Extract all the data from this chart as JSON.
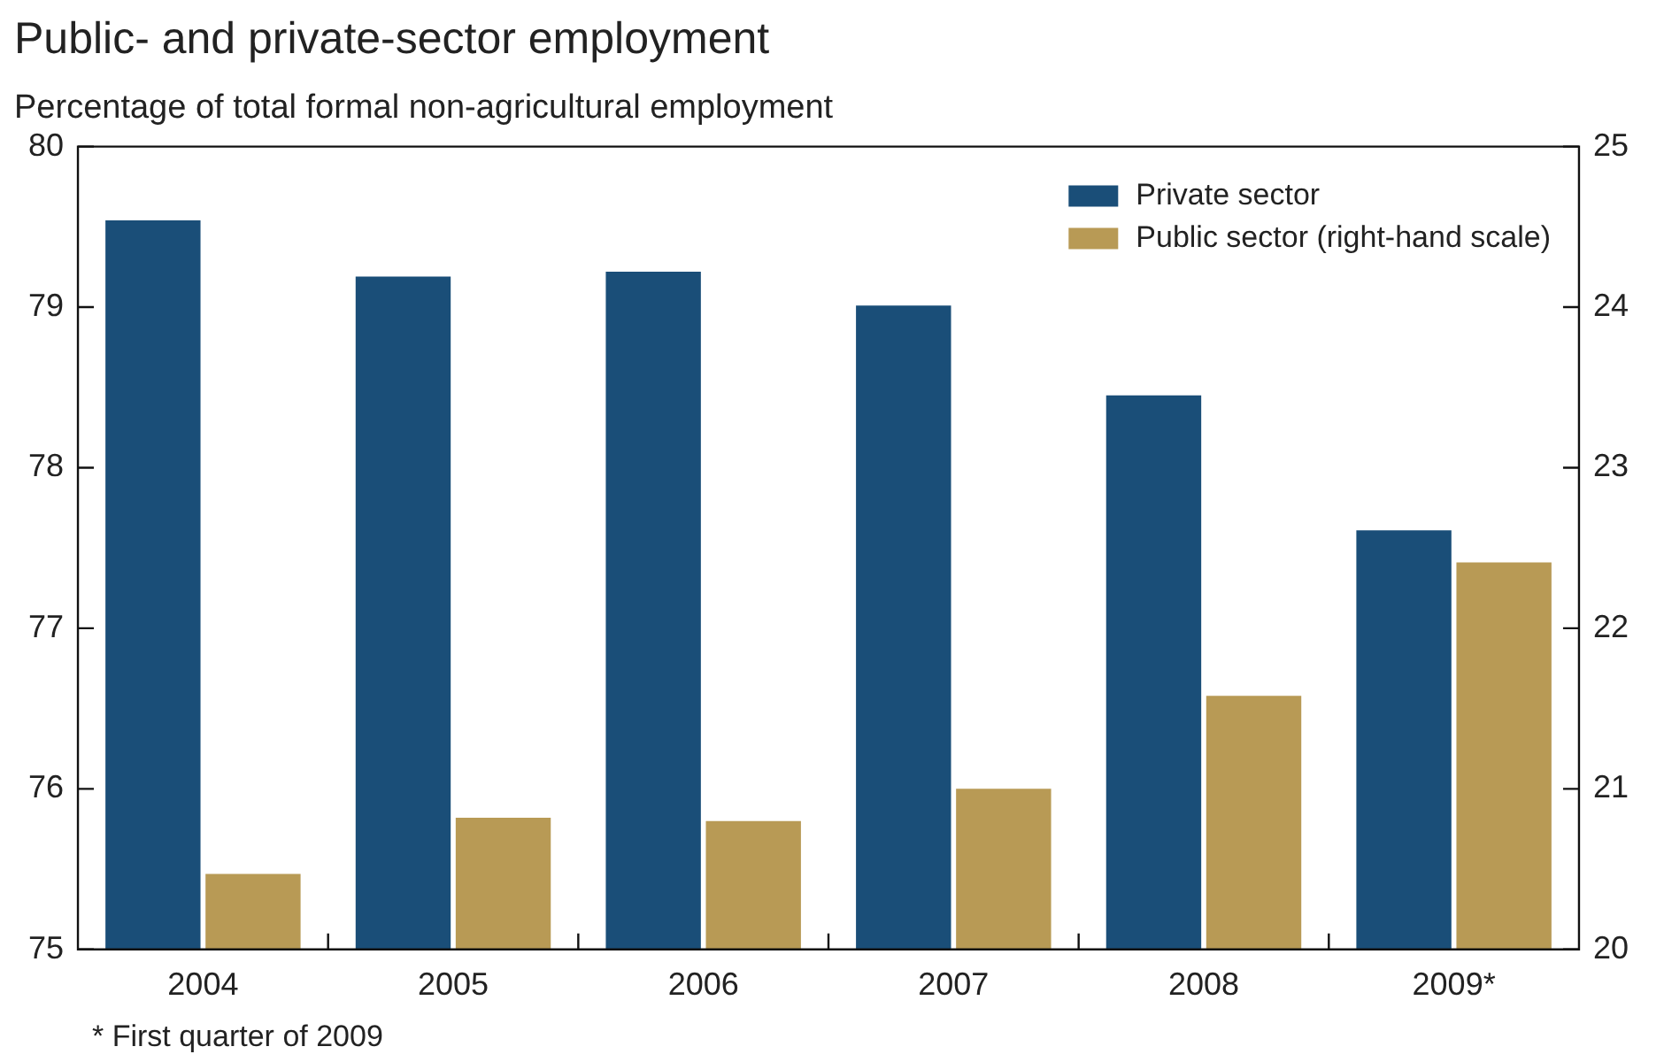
{
  "chart_data": {
    "type": "bar",
    "title": "Public- and private-sector employment",
    "subtitle": "Percentage of total formal non-agricultural employment",
    "categories": [
      "2004",
      "2005",
      "2006",
      "2007",
      "2008",
      "2009*"
    ],
    "series": [
      {
        "name": "Private sector",
        "color": "#1a4e78",
        "values": [
          79.54,
          79.19,
          79.22,
          79.01,
          78.45,
          77.61
        ]
      },
      {
        "name": "Public sector (right-hand scale)",
        "color": "#b89a55",
        "axis": "y2",
        "values": [
          20.47,
          20.82,
          20.8,
          21.0,
          21.58,
          22.41
        ]
      }
    ],
    "ylim": [
      75,
      80
    ],
    "yticks": [
      75,
      76,
      77,
      78,
      79,
      80
    ],
    "y2lim": [
      20,
      25
    ],
    "y2ticks": [
      20,
      21,
      22,
      23,
      24,
      25
    ],
    "grid": false,
    "legend": "top right",
    "annotations": [
      "* First quarter of 2009"
    ]
  }
}
